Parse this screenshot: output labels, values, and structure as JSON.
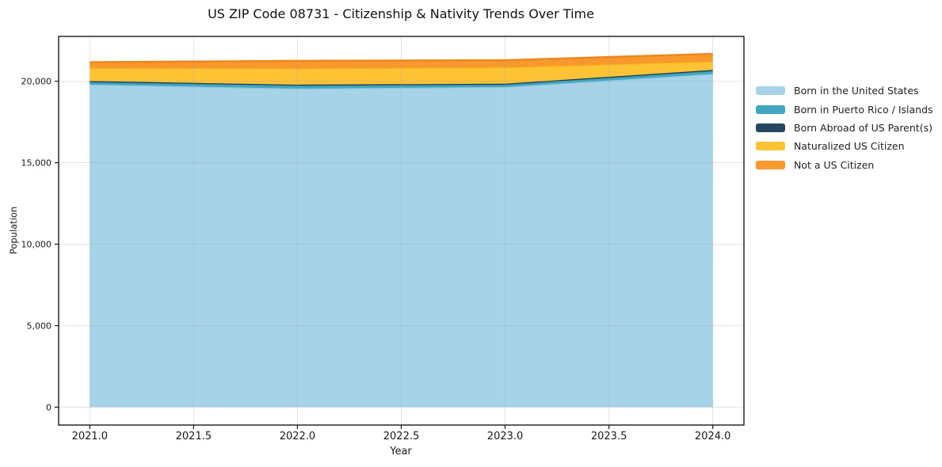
{
  "chart_data": {
    "type": "area",
    "stacked": true,
    "title": "US ZIP Code 08731 - Citizenship & Nativity Trends Over Time",
    "xlabel": "Year",
    "ylabel": "Population",
    "x": [
      2021,
      2022,
      2023,
      2024
    ],
    "series": [
      {
        "name": "Born in the United States",
        "values": [
          19800,
          19550,
          19650,
          20450
        ],
        "fill": "#a7d3e8",
        "line": "#8fc4de"
      },
      {
        "name": "Born in Puerto Rico / Islands",
        "values": [
          150,
          200,
          150,
          200
        ],
        "fill": "#41a7c1",
        "line": "#2d97b3"
      },
      {
        "name": "Born Abroad of US Parent(s)",
        "values": [
          60,
          40,
          50,
          40
        ],
        "fill": "#26475d",
        "line": "#1d3b50"
      },
      {
        "name": "Naturalized US Citizen",
        "values": [
          810,
          1010,
          1010,
          530
        ],
        "fill": "#fdc334",
        "line": "#f3b31c"
      },
      {
        "name": "Not a US Citizen",
        "values": [
          350,
          450,
          430,
          460
        ],
        "fill": "#f8982d",
        "line": "#ed861d"
      }
    ],
    "x_tick_values": [
      2021.0,
      2021.5,
      2022.0,
      2022.5,
      2023.0,
      2023.5,
      2024.0
    ],
    "x_tick_labels": [
      "2021.0",
      "2021.5",
      "2022.0",
      "2022.5",
      "2023.0",
      "2023.5",
      "2024.0"
    ],
    "y_tick_values": [
      0,
      5000,
      10000,
      15000,
      20000
    ],
    "y_tick_labels": [
      "0",
      "5,000",
      "10,000",
      "15,000",
      "20,000"
    ],
    "xlim": [
      2020.85,
      2024.15
    ],
    "ylim": [
      -1100,
      22750
    ],
    "grid": true,
    "legend_position": "right-outside",
    "colors": {
      "frame": "#1a1a1a",
      "tick_label": "#1a1a1a",
      "gridline": "rgba(160,160,160,0.30)",
      "background": "#ffffff"
    }
  }
}
